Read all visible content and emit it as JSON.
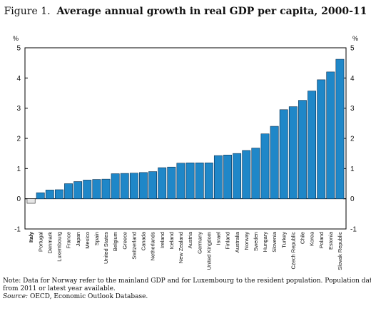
{
  "figure": {
    "number_label": "Figure 1.",
    "title": "Average annual growth in real GDP per capita, 2000-11"
  },
  "colors": {
    "bar_fill": "#1f87c8",
    "bar_stroke": "#0a2f4f",
    "highlight_fill": "#e6e6e6",
    "highlight_stroke": "#222222",
    "frame": "#000000"
  },
  "chart_data": {
    "type": "bar",
    "ylabel_left": "%",
    "ylabel_right": "%",
    "ylim": [
      -1,
      5
    ],
    "yticks": [
      -1,
      0,
      1,
      2,
      3,
      4,
      5
    ],
    "grid": false,
    "highlight_category": "Italy",
    "categories": [
      "Italy",
      "Portugal",
      "Denmark",
      "Luxembourg",
      "France",
      "Japan",
      "Mexico",
      "Spain",
      "United States",
      "Belgium",
      "Greece",
      "Switzerland",
      "Canada",
      "Netherlands",
      "Ireland",
      "Iceland",
      "New Zealand",
      "Austria",
      "Germany",
      "United Kingdom",
      "Israel",
      "Finland",
      "Australia",
      "Norway",
      "Sweden",
      "Hungary",
      "Slovenia",
      "Turkey",
      "Czech Republic",
      "Chile",
      "Korea",
      "Poland",
      "Estonia",
      "Slovak Republic"
    ],
    "values": [
      -0.15,
      0.2,
      0.29,
      0.3,
      0.5,
      0.57,
      0.62,
      0.64,
      0.65,
      0.83,
      0.84,
      0.85,
      0.87,
      0.9,
      1.03,
      1.05,
      1.18,
      1.19,
      1.19,
      1.19,
      1.43,
      1.45,
      1.5,
      1.6,
      1.68,
      2.15,
      2.4,
      2.95,
      3.05,
      3.26,
      3.57,
      3.94,
      4.2,
      4.62
    ]
  },
  "note": {
    "line1": "Note:  Data for Norway refer to the mainland GDP and for Luxembourg to the resident population. Population data are",
    "line2": "from 2011 or latest year available.",
    "source_label": "Source:",
    "source_text": "OECD, Economic Outlook Database."
  }
}
